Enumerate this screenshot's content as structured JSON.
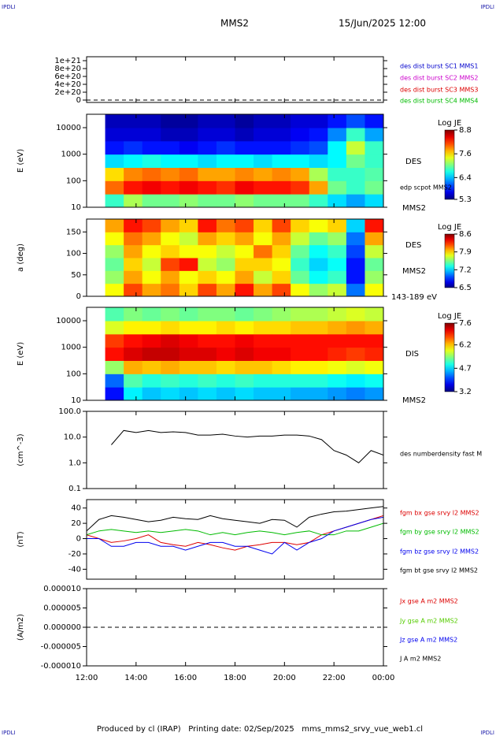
{
  "header": {
    "logo_left": "IPDLI",
    "logo_right": "IPDLI",
    "title": "MMS2",
    "date": "15/Jun/2025 12:00"
  },
  "footer": {
    "logo_left": "IPDLI",
    "logo_right": "IPDLI",
    "text": "Produced by cl (IRAP)   Printing date: 02/Sep/2025   mms_mms2_srvy_vue_web1.cl"
  },
  "chart_data": [
    {
      "type": "line",
      "xlim": [
        12,
        24
      ],
      "ylim": [
        -6e+19,
        1.1e+21
      ],
      "yticks": [
        {
          "value": 1e+21,
          "label": "1e+21"
        },
        {
          "value": 8e+20,
          "label": "8e+20"
        },
        {
          "value": 6e+20,
          "label": "6e+20"
        },
        {
          "value": 4e+20,
          "label": "4e+20"
        },
        {
          "value": 2e+20,
          "label": "2e+20"
        },
        0
      ],
      "zero_line": true,
      "x": [],
      "series": [
        {
          "name": "des dist burst SC1 MMS1",
          "color": "#0000cc",
          "values": []
        },
        {
          "name": "des dist burst SC2 MMS2",
          "color": "#cc00cc",
          "values": []
        },
        {
          "name": "des dist burst SC3 MMS3",
          "color": "#dd0000",
          "values": []
        },
        {
          "name": "des dist burst SC4 MMS4",
          "color": "#00bb00",
          "values": []
        }
      ]
    },
    {
      "type": "heatmap",
      "ylabel": "E (eV)",
      "log_y": true,
      "xlim": [
        12,
        24
      ],
      "ylim": [
        10,
        32000
      ],
      "yticks": [
        10,
        100,
        1000,
        10000
      ],
      "xbins": [
        12.75,
        13.5,
        14.25,
        15,
        15.75,
        16.5,
        17.25,
        18,
        18.75,
        19.5,
        20.25,
        21,
        21.75,
        22.5,
        23.25,
        24
      ],
      "ybins": [
        10,
        31.6,
        100,
        316,
        1000,
        3162,
        10000,
        32000
      ],
      "z": [
        [
          6.8,
          8.0,
          7.6,
          6.5,
          5.8,
          5.6,
          5.5
        ],
        [
          7.2,
          8.3,
          7.9,
          6.6,
          5.9,
          5.6,
          5.5
        ],
        [
          7.0,
          8.4,
          8.0,
          6.7,
          5.8,
          5.6,
          5.5
        ],
        [
          7.0,
          8.3,
          7.9,
          6.6,
          5.8,
          5.5,
          5.4
        ],
        [
          7.1,
          8.4,
          8.0,
          6.6,
          5.7,
          5.5,
          5.4
        ],
        [
          7.0,
          8.3,
          7.8,
          6.5,
          5.8,
          5.6,
          5.5
        ],
        [
          7.0,
          8.2,
          7.8,
          6.6,
          5.9,
          5.6,
          5.5
        ],
        [
          7.1,
          8.4,
          7.9,
          6.6,
          5.8,
          5.5,
          5.4
        ],
        [
          7.0,
          8.3,
          7.8,
          6.5,
          5.8,
          5.6,
          5.5
        ],
        [
          7.0,
          8.3,
          7.9,
          6.6,
          5.8,
          5.6,
          5.5
        ],
        [
          7.0,
          8.2,
          7.8,
          6.6,
          5.9,
          5.7,
          5.6
        ],
        [
          6.8,
          7.8,
          7.2,
          6.5,
          6.0,
          5.8,
          5.6
        ],
        [
          6.5,
          7.0,
          6.8,
          6.6,
          6.6,
          6.2,
          5.8
        ],
        [
          6.3,
          6.8,
          6.8,
          7.0,
          7.3,
          6.8,
          6.0
        ],
        [
          6.5,
          7.0,
          6.9,
          6.8,
          6.8,
          6.3,
          5.8
        ]
      ],
      "colorbar": {
        "title": "Log JE",
        "lim": [
          5.3,
          8.8
        ],
        "ticks": [
          8.8,
          7.6,
          6.4,
          5.3
        ]
      },
      "labels": [
        "DES",
        "edp scpot MMS2",
        "MMS2"
      ]
    },
    {
      "type": "heatmap",
      "ylabel": "a (deg)",
      "log_y": false,
      "xlim": [
        12,
        24
      ],
      "ylim": [
        0,
        180
      ],
      "yticks": [
        0,
        50,
        100,
        150
      ],
      "xbins": [
        12.75,
        13.5,
        14.25,
        15,
        15.75,
        16.5,
        17.25,
        18,
        18.75,
        19.5,
        20.25,
        21,
        21.75,
        22.5,
        23.25,
        24
      ],
      "ybins": [
        0,
        30,
        60,
        90,
        120,
        150,
        180
      ],
      "z": [
        [
          7.8,
          7.6,
          7.5,
          7.6,
          7.8,
          8.0
        ],
        [
          8.2,
          8.0,
          7.9,
          8.0,
          8.1,
          8.3
        ],
        [
          8.0,
          7.8,
          7.7,
          7.8,
          8.0,
          8.2
        ],
        [
          8.1,
          8.0,
          8.2,
          7.9,
          7.8,
          8.0
        ],
        [
          7.9,
          7.8,
          8.3,
          7.8,
          7.7,
          7.9
        ],
        [
          8.2,
          7.9,
          7.7,
          7.8,
          8.0,
          8.3
        ],
        [
          8.0,
          7.8,
          7.6,
          7.7,
          7.9,
          8.1
        ],
        [
          8.3,
          8.0,
          7.9,
          7.8,
          8.0,
          8.2
        ],
        [
          8.0,
          7.7,
          7.9,
          8.1,
          7.8,
          7.9
        ],
        [
          8.2,
          7.9,
          7.8,
          7.9,
          8.0,
          8.2
        ],
        [
          7.8,
          7.5,
          7.4,
          7.5,
          7.7,
          7.9
        ],
        [
          7.6,
          7.3,
          7.2,
          7.3,
          7.5,
          7.8
        ],
        [
          7.7,
          7.4,
          7.3,
          7.4,
          7.6,
          7.9
        ],
        [
          7.0,
          6.8,
          6.8,
          6.9,
          7.0,
          7.2
        ],
        [
          7.8,
          7.6,
          7.5,
          7.7,
          8.0,
          8.3
        ]
      ],
      "colorbar": {
        "title": "Log JE",
        "lim": [
          6.5,
          8.6
        ],
        "ticks": [
          8.6,
          7.9,
          7.2,
          6.5
        ]
      },
      "labels": [
        "DES",
        "MMS2",
        "143-189 eV"
      ]
    },
    {
      "type": "heatmap",
      "ylabel": "E (eV)",
      "log_y": true,
      "xlim": [
        12,
        24
      ],
      "ylim": [
        10,
        32000
      ],
      "yticks": [
        10,
        100,
        1000,
        10000
      ],
      "xbins": [
        12.75,
        13.5,
        14.25,
        15,
        15.75,
        16.5,
        17.25,
        18,
        18.75,
        19.5,
        20.25,
        21,
        21.75,
        22.5,
        23.25,
        24
      ],
      "ybins": [
        10,
        31.6,
        100,
        316,
        1000,
        3162,
        10000,
        32000
      ],
      "z": [
        [
          3.8,
          4.2,
          5.5,
          7.0,
          6.8,
          5.8,
          5.2
        ],
        [
          4.8,
          5.2,
          6.3,
          7.2,
          7.0,
          6.0,
          5.4
        ],
        [
          4.6,
          5.0,
          6.2,
          7.3,
          7.1,
          6.0,
          5.3
        ],
        [
          4.7,
          5.1,
          6.3,
          7.3,
          7.2,
          6.1,
          5.4
        ],
        [
          4.6,
          5.0,
          6.2,
          7.2,
          7.1,
          6.0,
          5.3
        ],
        [
          4.7,
          5.1,
          6.2,
          7.2,
          7.0,
          6.0,
          5.4
        ],
        [
          4.6,
          5.0,
          6.1,
          7.1,
          7.0,
          6.1,
          5.4
        ],
        [
          4.7,
          5.1,
          6.2,
          7.2,
          7.1,
          6.0,
          5.3
        ],
        [
          4.6,
          5.0,
          6.2,
          7.1,
          7.0,
          6.1,
          5.4
        ],
        [
          4.6,
          5.0,
          6.1,
          7.1,
          7.0,
          6.1,
          5.5
        ],
        [
          4.5,
          5.0,
          6.0,
          7.0,
          7.0,
          6.2,
          5.6
        ],
        [
          4.5,
          5.0,
          6.0,
          7.0,
          7.0,
          6.2,
          5.6
        ],
        [
          4.4,
          4.9,
          5.9,
          6.9,
          7.0,
          6.3,
          5.7
        ],
        [
          4.3,
          4.8,
          5.8,
          6.8,
          7.0,
          6.4,
          5.8
        ],
        [
          4.4,
          4.9,
          5.9,
          6.9,
          7.0,
          6.3,
          5.7
        ]
      ],
      "colorbar": {
        "title": "Log JE",
        "lim": [
          3.2,
          7.6
        ],
        "ticks": [
          7.6,
          6.2,
          4.7,
          3.2
        ]
      },
      "labels": [
        "DIS",
        "MMS2"
      ]
    },
    {
      "type": "line",
      "ylabel": "(cm^-3)",
      "log_y": true,
      "xlim": [
        12,
        24
      ],
      "ylim": [
        0.1,
        100
      ],
      "yticks": [
        {
          "value": 100,
          "label": "100.0"
        },
        {
          "value": 10,
          "label": "10.0"
        },
        {
          "value": 1,
          "label": "1.0"
        },
        {
          "value": 0.1,
          "label": "0.1"
        }
      ],
      "x": [
        12,
        12.5,
        13,
        13.5,
        14,
        14.5,
        15,
        15.5,
        16,
        16.5,
        17,
        17.5,
        18,
        18.5,
        19,
        19.5,
        20,
        20.5,
        21,
        21.5,
        22,
        22.5,
        23,
        23.5,
        24
      ],
      "series": [
        {
          "name": "des numberdensity fast M",
          "color": "#000000",
          "values": [
            null,
            null,
            5,
            18,
            15,
            18,
            15,
            16,
            15,
            12,
            12,
            13,
            11,
            10,
            11,
            11,
            12,
            12,
            11,
            8,
            3,
            2,
            1,
            3,
            2
          ]
        }
      ]
    },
    {
      "type": "line",
      "ylabel": "(nT)",
      "xlim": [
        12,
        24
      ],
      "ylim": [
        -53,
        51
      ],
      "yticks": [
        40,
        20,
        0,
        -20,
        -40
      ],
      "x": [
        12,
        12.5,
        13,
        13.5,
        14,
        14.5,
        15,
        15.5,
        16,
        16.5,
        17,
        17.5,
        18,
        18.5,
        19,
        19.5,
        20,
        20.5,
        21,
        21.5,
        22,
        22.5,
        23,
        23.5,
        24
      ],
      "series": [
        {
          "name": "fgm bx gse srvy l2 MMS2",
          "color": "#dd0000",
          "values": [
            5,
            0,
            -5,
            -3,
            0,
            5,
            -5,
            -8,
            -10,
            -5,
            -8,
            -12,
            -15,
            -10,
            -8,
            -5,
            -5,
            -8,
            -5,
            5,
            10,
            15,
            20,
            25,
            30
          ]
        },
        {
          "name": "fgm by gse srvy l2 MMS2",
          "color": "#00bb00",
          "values": [
            5,
            10,
            12,
            10,
            8,
            10,
            8,
            10,
            12,
            10,
            5,
            8,
            5,
            8,
            10,
            8,
            5,
            8,
            10,
            5,
            5,
            10,
            10,
            15,
            20
          ]
        },
        {
          "name": "fgm bz gse srvy l2 MMS2",
          "color": "#0000ee",
          "values": [
            0,
            0,
            -10,
            -10,
            -5,
            -5,
            -10,
            -10,
            -15,
            -10,
            -5,
            -5,
            -10,
            -10,
            -15,
            -20,
            -5,
            -15,
            -5,
            0,
            10,
            15,
            20,
            25,
            28
          ]
        },
        {
          "name": "fgm bt gse srvy l2 MMS2",
          "color": "#000000",
          "values": [
            10,
            25,
            30,
            28,
            25,
            22,
            24,
            28,
            26,
            25,
            30,
            26,
            24,
            22,
            20,
            25,
            24,
            15,
            28,
            32,
            35,
            36,
            38,
            40,
            42
          ]
        }
      ]
    },
    {
      "type": "line",
      "ylabel": "(A/m2)",
      "xlim": [
        12,
        24
      ],
      "ylim": [
        -1e-05,
        1e-05
      ],
      "yticks": [
        {
          "value": 1e-05,
          "label": "0.000010"
        },
        {
          "value": 5e-06,
          "label": "0.000005"
        },
        {
          "value": 0,
          "label": "0.000000"
        },
        {
          "value": -5e-06,
          "label": "-0.000005"
        },
        {
          "value": -1e-05,
          "label": "-0.000010"
        }
      ],
      "zero_line": true,
      "x": [],
      "xticks": [
        {
          "value": 12,
          "label": "12:00"
        },
        {
          "value": 14,
          "label": "14:00"
        },
        {
          "value": 16,
          "label": "16:00"
        },
        {
          "value": 18,
          "label": "18:00"
        },
        {
          "value": 20,
          "label": "20:00"
        },
        {
          "value": 22,
          "label": "22:00"
        },
        {
          "value": 24,
          "label": "00:00"
        }
      ],
      "series": [
        {
          "name": "Jx gse A m2 MMS2",
          "color": "#dd0000",
          "values": []
        },
        {
          "name": "Jy gse A m2 MMS2",
          "color": "#55cc00",
          "values": []
        },
        {
          "name": "Jz gse A m2 MMS2",
          "color": "#0000ee",
          "values": []
        },
        {
          "name": "J A m2 MMS2",
          "color": "#000000",
          "values": []
        }
      ]
    }
  ]
}
